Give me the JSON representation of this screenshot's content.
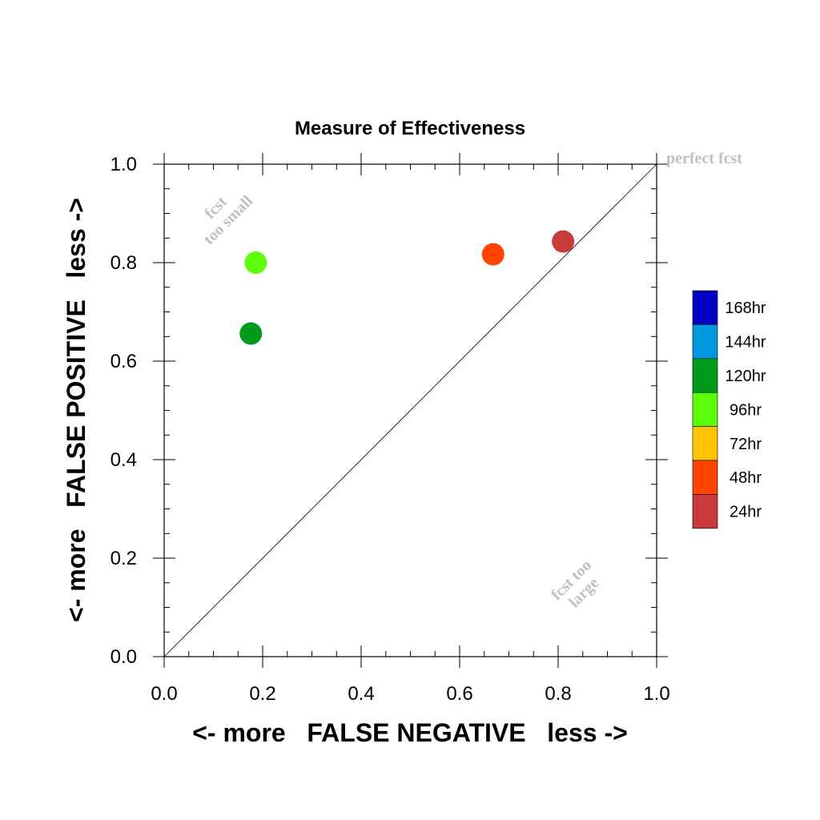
{
  "chart_data": {
    "type": "scatter",
    "title": "Measure of Effectiveness",
    "xlabel": "<- more   FALSE NEGATIVE   less ->",
    "ylabel": "<- more   FALSE POSITIVE   less ->",
    "xlim": [
      0,
      1
    ],
    "ylim": [
      0,
      1
    ],
    "xticks": [
      "0.0",
      "0.2",
      "0.4",
      "0.6",
      "0.8",
      "1.0"
    ],
    "yticks": [
      "0.0",
      "0.2",
      "0.4",
      "0.6",
      "0.8",
      "1.0"
    ],
    "grid": false,
    "reference_line": "diagonal",
    "annotations": {
      "perfect": "perfect fcst",
      "too_small_1": "fcst",
      "too_small_2": "too small",
      "too_large_1": "fcst too",
      "too_large_2": "large"
    },
    "legend": {
      "position": "right",
      "entries": [
        {
          "label": "168hr",
          "color": "#0000c4"
        },
        {
          "label": "144hr",
          "color": "#0099e0"
        },
        {
          "label": "120hr",
          "color": "#009a1c"
        },
        {
          "label": "96hr",
          "color": "#5cfe0c"
        },
        {
          "label": "72hr",
          "color": "#ffc400"
        },
        {
          "label": "48hr",
          "color": "#ff4400"
        },
        {
          "label": "24hr",
          "color": "#c93a3a"
        }
      ]
    },
    "points": [
      {
        "series": "24hr",
        "x": 0.81,
        "y": 0.843,
        "color": "#c93a3a"
      },
      {
        "series": "48hr",
        "x": 0.668,
        "y": 0.817,
        "color": "#ff4400"
      },
      {
        "series": "96hr",
        "x": 0.186,
        "y": 0.8,
        "color": "#5cfe0c"
      },
      {
        "series": "120hr",
        "x": 0.176,
        "y": 0.656,
        "color": "#009a1c"
      }
    ]
  }
}
